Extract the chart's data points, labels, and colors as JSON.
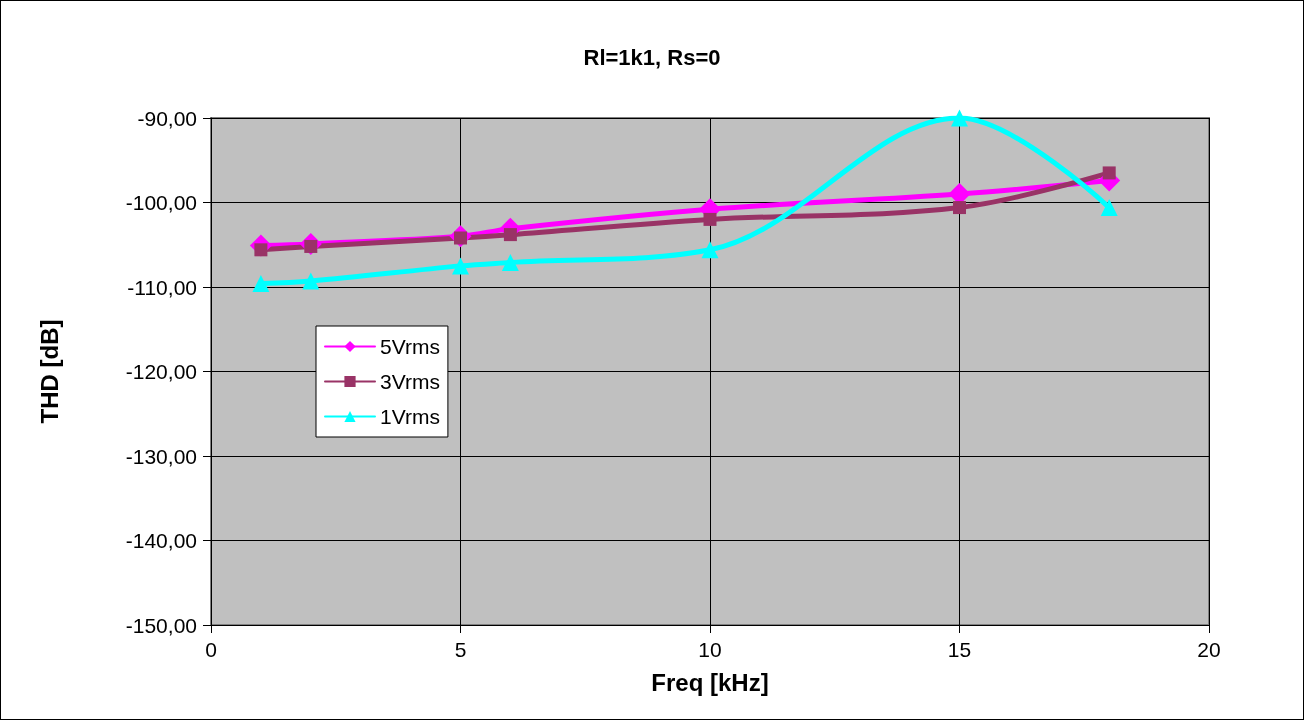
{
  "chart_data": {
    "type": "line",
    "title": "Rl=1k1, Rs=0",
    "xlabel": "Freq [kHz]",
    "ylabel": "THD [dB]",
    "xlim": [
      0,
      20
    ],
    "xticks": [
      0,
      5,
      10,
      15,
      20
    ],
    "ylim": [
      -150,
      -90
    ],
    "yticks": [
      {
        "value": -150,
        "label": "-150,00"
      },
      {
        "value": -140,
        "label": "-140,00"
      },
      {
        "value": -130,
        "label": "-130,00"
      },
      {
        "value": -120,
        "label": "-120,00"
      },
      {
        "value": -110,
        "label": "-110,00"
      },
      {
        "value": -100,
        "label": "-100,00"
      },
      {
        "value": -90,
        "label": "-90,00"
      }
    ],
    "x": [
      1,
      2,
      5,
      6,
      10,
      15,
      18
    ],
    "grid": true,
    "legend": "left",
    "series": [
      {
        "name": "5Vrms",
        "color": "#ff00ff",
        "marker": "diamond",
        "values": [
          -105.1,
          -104.9,
          -104.0,
          -103.1,
          -100.8,
          -99.0,
          -97.4
        ]
      },
      {
        "name": "3Vrms",
        "color": "#993366",
        "marker": "square",
        "values": [
          -105.6,
          -105.2,
          -104.2,
          -103.8,
          -102.0,
          -100.6,
          -96.5
        ]
      },
      {
        "name": "1Vrms",
        "color": "#00ffff",
        "marker": "triangle",
        "values": [
          -109.6,
          -109.3,
          -107.5,
          -107.1,
          -105.6,
          -90.0,
          -100.6
        ]
      }
    ]
  }
}
